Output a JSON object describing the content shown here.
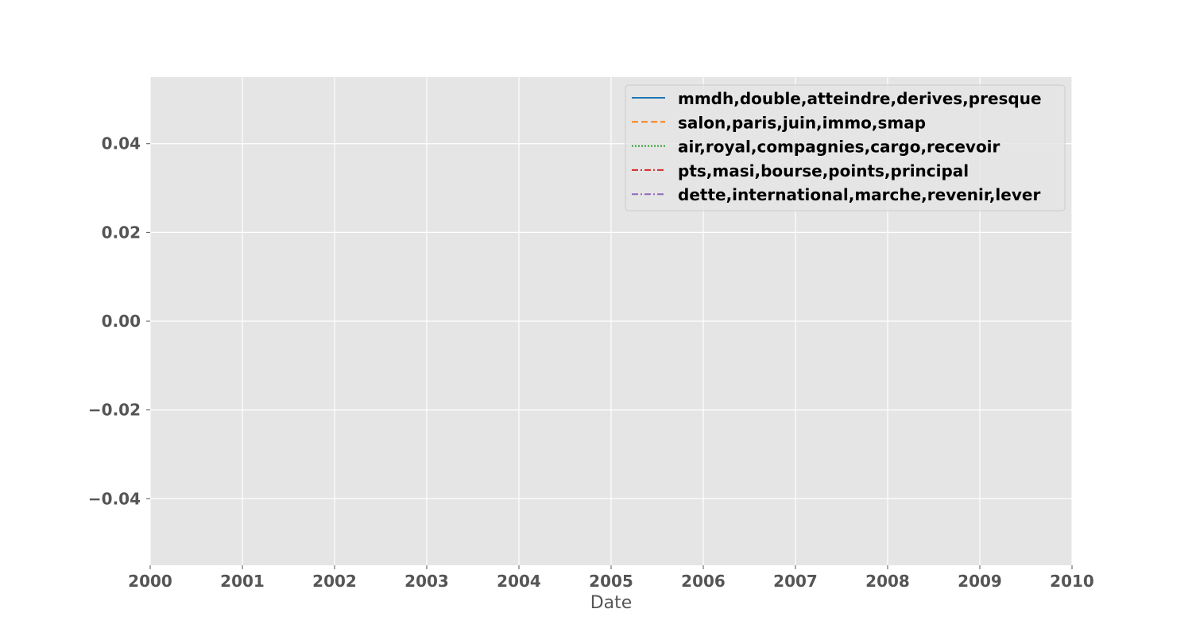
{
  "chart_data": {
    "type": "line",
    "title": "",
    "xlabel": "Date",
    "ylabel": "",
    "x_ticks": [
      "2000",
      "2001",
      "2002",
      "2003",
      "2004",
      "2005",
      "2006",
      "2007",
      "2008",
      "2009",
      "2010"
    ],
    "y_ticks": [
      "−0.04",
      "−0.02",
      "0.00",
      "0.02",
      "0.04"
    ],
    "xlim": [
      "2000-01-01",
      "2010-01-01"
    ],
    "ylim": [
      -0.055,
      0.055
    ],
    "grid": true,
    "legend_position": "top-right",
    "series": [
      {
        "name": "mmdh,double,atteindre,derives,presque",
        "color": "#1f77b4",
        "linestyle": "solid",
        "values": []
      },
      {
        "name": "salon,paris,juin,immo,smap",
        "color": "#ff7f0e",
        "linestyle": "dashed",
        "values": []
      },
      {
        "name": "air,royal,compagnies,cargo,recevoir",
        "color": "#2ca02c",
        "linestyle": "dotted",
        "values": []
      },
      {
        "name": "pts,masi,bourse,points,principal",
        "color": "#d62728",
        "linestyle": "dashdot",
        "values": []
      },
      {
        "name": "dette,international,marche,revenir,lever",
        "color": "#9467bd",
        "linestyle": "dashdot",
        "values": []
      }
    ]
  }
}
